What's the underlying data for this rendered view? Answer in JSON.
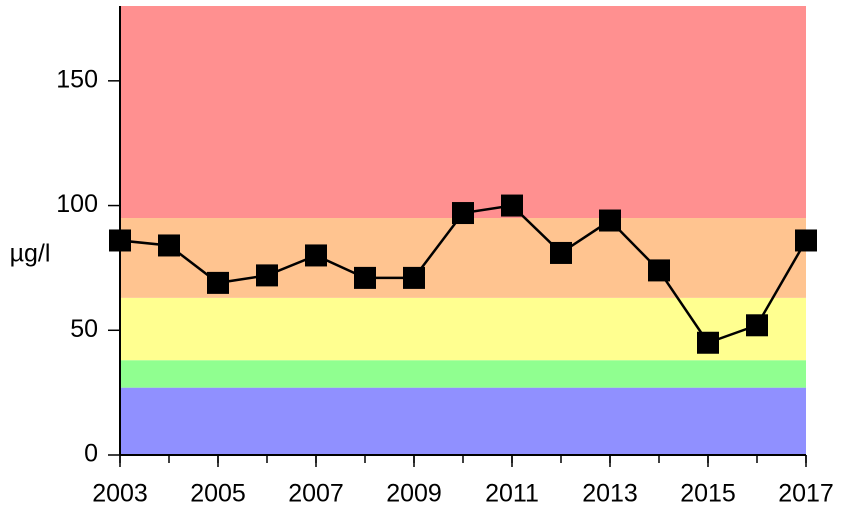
{
  "chart_data": {
    "type": "line",
    "y_label": "µg/l",
    "x": [
      2003,
      2004,
      2005,
      2006,
      2007,
      2008,
      2009,
      2010,
      2011,
      2012,
      2013,
      2014,
      2015,
      2016,
      2017
    ],
    "series": [
      {
        "color": "#000000",
        "values": [
          86,
          84,
          69,
          72,
          80,
          71,
          71,
          97,
          100,
          81,
          94,
          74,
          45,
          52,
          86
        ]
      }
    ],
    "xlim": [
      2003,
      2017
    ],
    "xticks": [
      2003,
      2005,
      2007,
      2009,
      2011,
      2013,
      2015,
      2017
    ],
    "ylim": [
      0,
      180
    ],
    "yticks": [
      0,
      50,
      100,
      150
    ],
    "bands": [
      {
        "from": 0,
        "to": 27,
        "color": "#9090ff"
      },
      {
        "from": 27,
        "to": 38,
        "color": "#90ff90"
      },
      {
        "from": 38,
        "to": 63,
        "color": "#ffff90"
      },
      {
        "from": 63,
        "to": 95,
        "color": "#ffc490"
      },
      {
        "from": 95,
        "to": 180,
        "color": "#ff9090"
      }
    ]
  }
}
